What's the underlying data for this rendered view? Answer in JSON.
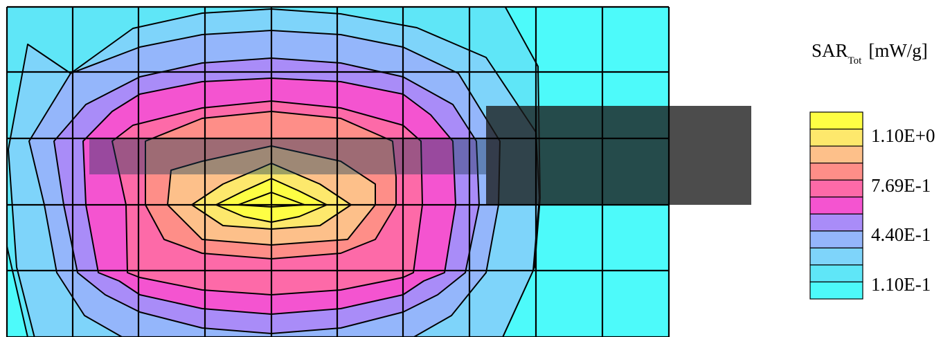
{
  "chart_data": {
    "type": "heatmap",
    "title": "",
    "colorbar": {
      "title_main": "SAR",
      "title_sub": "Tot",
      "title_unit": "[mW/g]",
      "levels": 10,
      "colors": [
        "#4dfafa",
        "#5fe6f7",
        "#7ed4fa",
        "#94b6fb",
        "#a98cf8",
        "#f454d0",
        "#fd6aa8",
        "#fe8e88",
        "#fdc08a",
        "#fde86c",
        "#fefe44"
      ],
      "tick_labels": [
        {
          "label": "1.10E+0",
          "value": 1.1
        },
        {
          "label": "7.69E-1",
          "value": 0.769
        },
        {
          "label": "4.40E-1",
          "value": 0.44
        },
        {
          "label": "1.10E-1",
          "value": 0.11
        }
      ]
    },
    "peak_value": 1.1,
    "min_value": 0.0,
    "grid": true,
    "grid_columns": 10,
    "grid_rows": 5,
    "device_outline_color": "#333333"
  }
}
